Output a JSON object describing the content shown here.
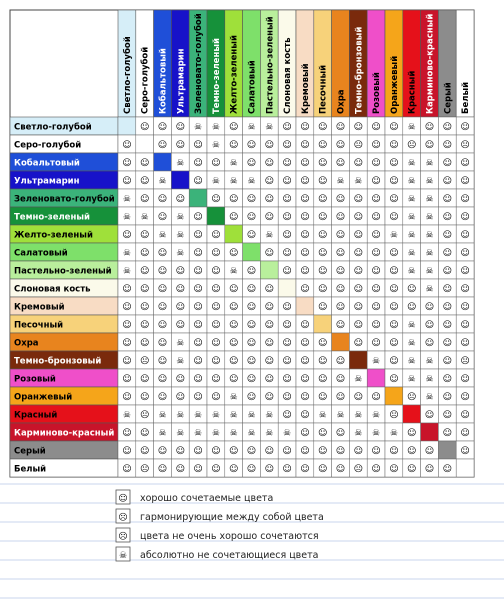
{
  "colors": [
    {
      "name": "Светло-голубой",
      "hex": "#d6eef8",
      "row_text": "#000000"
    },
    {
      "name": "Серо-голубой",
      "hex": "#ffffff",
      "row_text": "#000000"
    },
    {
      "name": "Кобальтовый",
      "hex": "#1f4fd8",
      "row_text": "#ffffff"
    },
    {
      "name": "Ультрамарин",
      "hex": "#1712c9",
      "row_text": "#ffffff"
    },
    {
      "name": "Зеленовато-голубой",
      "hex": "#3bb37a",
      "row_text": "#000000"
    },
    {
      "name": "Темно-зеленый",
      "hex": "#16913a",
      "row_text": "#ffffff"
    },
    {
      "name": "Желто-зеленый",
      "hex": "#9fe03a",
      "row_text": "#000000"
    },
    {
      "name": "Салатовый",
      "hex": "#7ee06a",
      "row_text": "#000000"
    },
    {
      "name": "Пастельно-зеленый",
      "hex": "#b9ef9c",
      "row_text": "#000000"
    },
    {
      "name": "Слоновая кость",
      "hex": "#fbfaea",
      "row_text": "#000000"
    },
    {
      "name": "Кремовый",
      "hex": "#f8dcc4",
      "row_text": "#000000"
    },
    {
      "name": "Песочный",
      "hex": "#f7d27a",
      "row_text": "#000000"
    },
    {
      "name": "Охра",
      "hex": "#e8841e",
      "row_text": "#000000"
    },
    {
      "name": "Темно-бронзовый",
      "hex": "#7a2a0c",
      "row_text": "#ffffff"
    },
    {
      "name": "Розовый",
      "hex": "#ef4fc9",
      "row_text": "#000000"
    },
    {
      "name": "Оранжевый",
      "hex": "#f5a51a",
      "row_text": "#000000"
    },
    {
      "name": "Красный",
      "hex": "#e5111a",
      "row_text": "#000000"
    },
    {
      "name": "Карминово-красный",
      "hex": "#c8142a",
      "row_text": "#ffffff"
    },
    {
      "name": "Серый",
      "hex": "#8c8c8c",
      "row_text": "#000000"
    },
    {
      "name": "Белый",
      "hex": "#ffffff",
      "row_text": "#000000"
    }
  ],
  "matrix_symbols": {
    "good": "☺",
    "harmonious": "☹",
    "not_very_good": "☹",
    "incompatible": "☠"
  },
  "matrix": [
    [
      "",
      "",
      "",
      "",
      "",
      "",
      "",
      "",
      "",
      "",
      "",
      "",
      "",
      "",
      "",
      "",
      "",
      "",
      "",
      ""
    ],
    [
      "good",
      "",
      "",
      "",
      "",
      "",
      "",
      "",
      "",
      "",
      "",
      "",
      "",
      "",
      "",
      "",
      "",
      "",
      "",
      ""
    ],
    [
      "good",
      "good",
      "",
      "",
      "",
      "",
      "",
      "",
      "",
      "",
      "",
      "",
      "",
      "",
      "",
      "",
      "",
      "",
      "",
      ""
    ],
    [
      "good",
      "good",
      "incompatible",
      "",
      "",
      "",
      "",
      "",
      "",
      "",
      "",
      "",
      "",
      "",
      "",
      "",
      "",
      "",
      "",
      ""
    ],
    [
      "incompatible",
      "good",
      "good",
      "good",
      "",
      "",
      "",
      "",
      "",
      "",
      "",
      "",
      "",
      "",
      "",
      "",
      "",
      "",
      "",
      ""
    ],
    [
      "incompatible",
      "incompatible",
      "good",
      "incompatible",
      "good",
      "",
      "",
      "",
      "",
      "",
      "",
      "",
      "",
      "",
      "",
      "",
      "",
      "",
      "",
      ""
    ],
    [
      "good",
      "good",
      "incompatible",
      "incompatible",
      "good",
      "good",
      "",
      "",
      "",
      "",
      "",
      "",
      "",
      "",
      "",
      "",
      "",
      "",
      "",
      ""
    ],
    [
      "incompatible",
      "good",
      "good",
      "incompatible",
      "good",
      "good",
      "good",
      "",
      "",
      "",
      "",
      "",
      "",
      "",
      "",
      "",
      "",
      "",
      "",
      ""
    ],
    [
      "incompatible",
      "good",
      "good",
      "good",
      "good",
      "good",
      "incompatible",
      "good",
      "",
      "",
      "",
      "",
      "",
      "",
      "",
      "",
      "",
      "",
      "",
      ""
    ],
    [
      "good",
      "good",
      "good",
      "good",
      "good",
      "good",
      "good",
      "good",
      "good",
      "",
      "",
      "",
      "",
      "",
      "",
      "",
      "",
      "",
      "",
      ""
    ],
    [
      "good",
      "good",
      "good",
      "good",
      "good",
      "good",
      "good",
      "good",
      "good",
      "good",
      "",
      "",
      "",
      "",
      "",
      "",
      "",
      "",
      "",
      ""
    ],
    [
      "good",
      "good",
      "good",
      "good",
      "good",
      "good",
      "good",
      "good",
      "good",
      "good",
      "good",
      "",
      "",
      "",
      "",
      "",
      "",
      "",
      "",
      ""
    ],
    [
      "good",
      "good",
      "good",
      "incompatible",
      "good",
      "good",
      "good",
      "good",
      "good",
      "good",
      "good",
      "good",
      "",
      "",
      "",
      "",
      "",
      "",
      "",
      ""
    ],
    [
      "good",
      "not_very_good",
      "good",
      "incompatible",
      "good",
      "good",
      "good",
      "good",
      "good",
      "good",
      "good",
      "good",
      "good",
      "",
      "",
      "",
      "",
      "",
      "",
      ""
    ],
    [
      "good",
      "good",
      "good",
      "good",
      "good",
      "good",
      "good",
      "good",
      "good",
      "good",
      "good",
      "good",
      "good",
      "incompatible",
      "",
      "",
      "",
      "",
      "",
      ""
    ],
    [
      "good",
      "good",
      "good",
      "good",
      "good",
      "good",
      "incompatible",
      "good",
      "good",
      "good",
      "good",
      "good",
      "good",
      "good",
      "good",
      "",
      "",
      "",
      "",
      ""
    ],
    [
      "incompatible",
      "not_very_good",
      "incompatible",
      "incompatible",
      "incompatible",
      "incompatible",
      "incompatible",
      "incompatible",
      "incompatible",
      "good",
      "good",
      "incompatible",
      "incompatible",
      "incompatible",
      "incompatible",
      "not_very_good",
      "",
      "",
      "",
      ""
    ],
    [
      "good",
      "good",
      "incompatible",
      "incompatible",
      "incompatible",
      "incompatible",
      "incompatible",
      "incompatible",
      "incompatible",
      "incompatible",
      "good",
      "good",
      "good",
      "incompatible",
      "incompatible",
      "incompatible",
      "good",
      "",
      "",
      ""
    ],
    [
      "good",
      "good",
      "good",
      "good",
      "good",
      "good",
      "good",
      "good",
      "good",
      "good",
      "good",
      "good",
      "good",
      "good",
      "good",
      "good",
      "good",
      "good",
      "",
      ""
    ],
    [
      "good",
      "not_very_good",
      "good",
      "good",
      "good",
      "good",
      "good",
      "good",
      "good",
      "good",
      "good",
      "good",
      "good",
      "not_very_good",
      "good",
      "good",
      "good",
      "good",
      "good",
      ""
    ]
  ],
  "legend": [
    {
      "symbol": "☺",
      "text": "хорошо сочетаемые цвета"
    },
    {
      "symbol": "☹",
      "text": "гармонирующие между собой цвета"
    },
    {
      "symbol": "☹",
      "text": "цвета не очень хорошо сочетаются"
    },
    {
      "symbol": "☠",
      "text": "абсолютно не сочетающиеся цвета"
    }
  ]
}
